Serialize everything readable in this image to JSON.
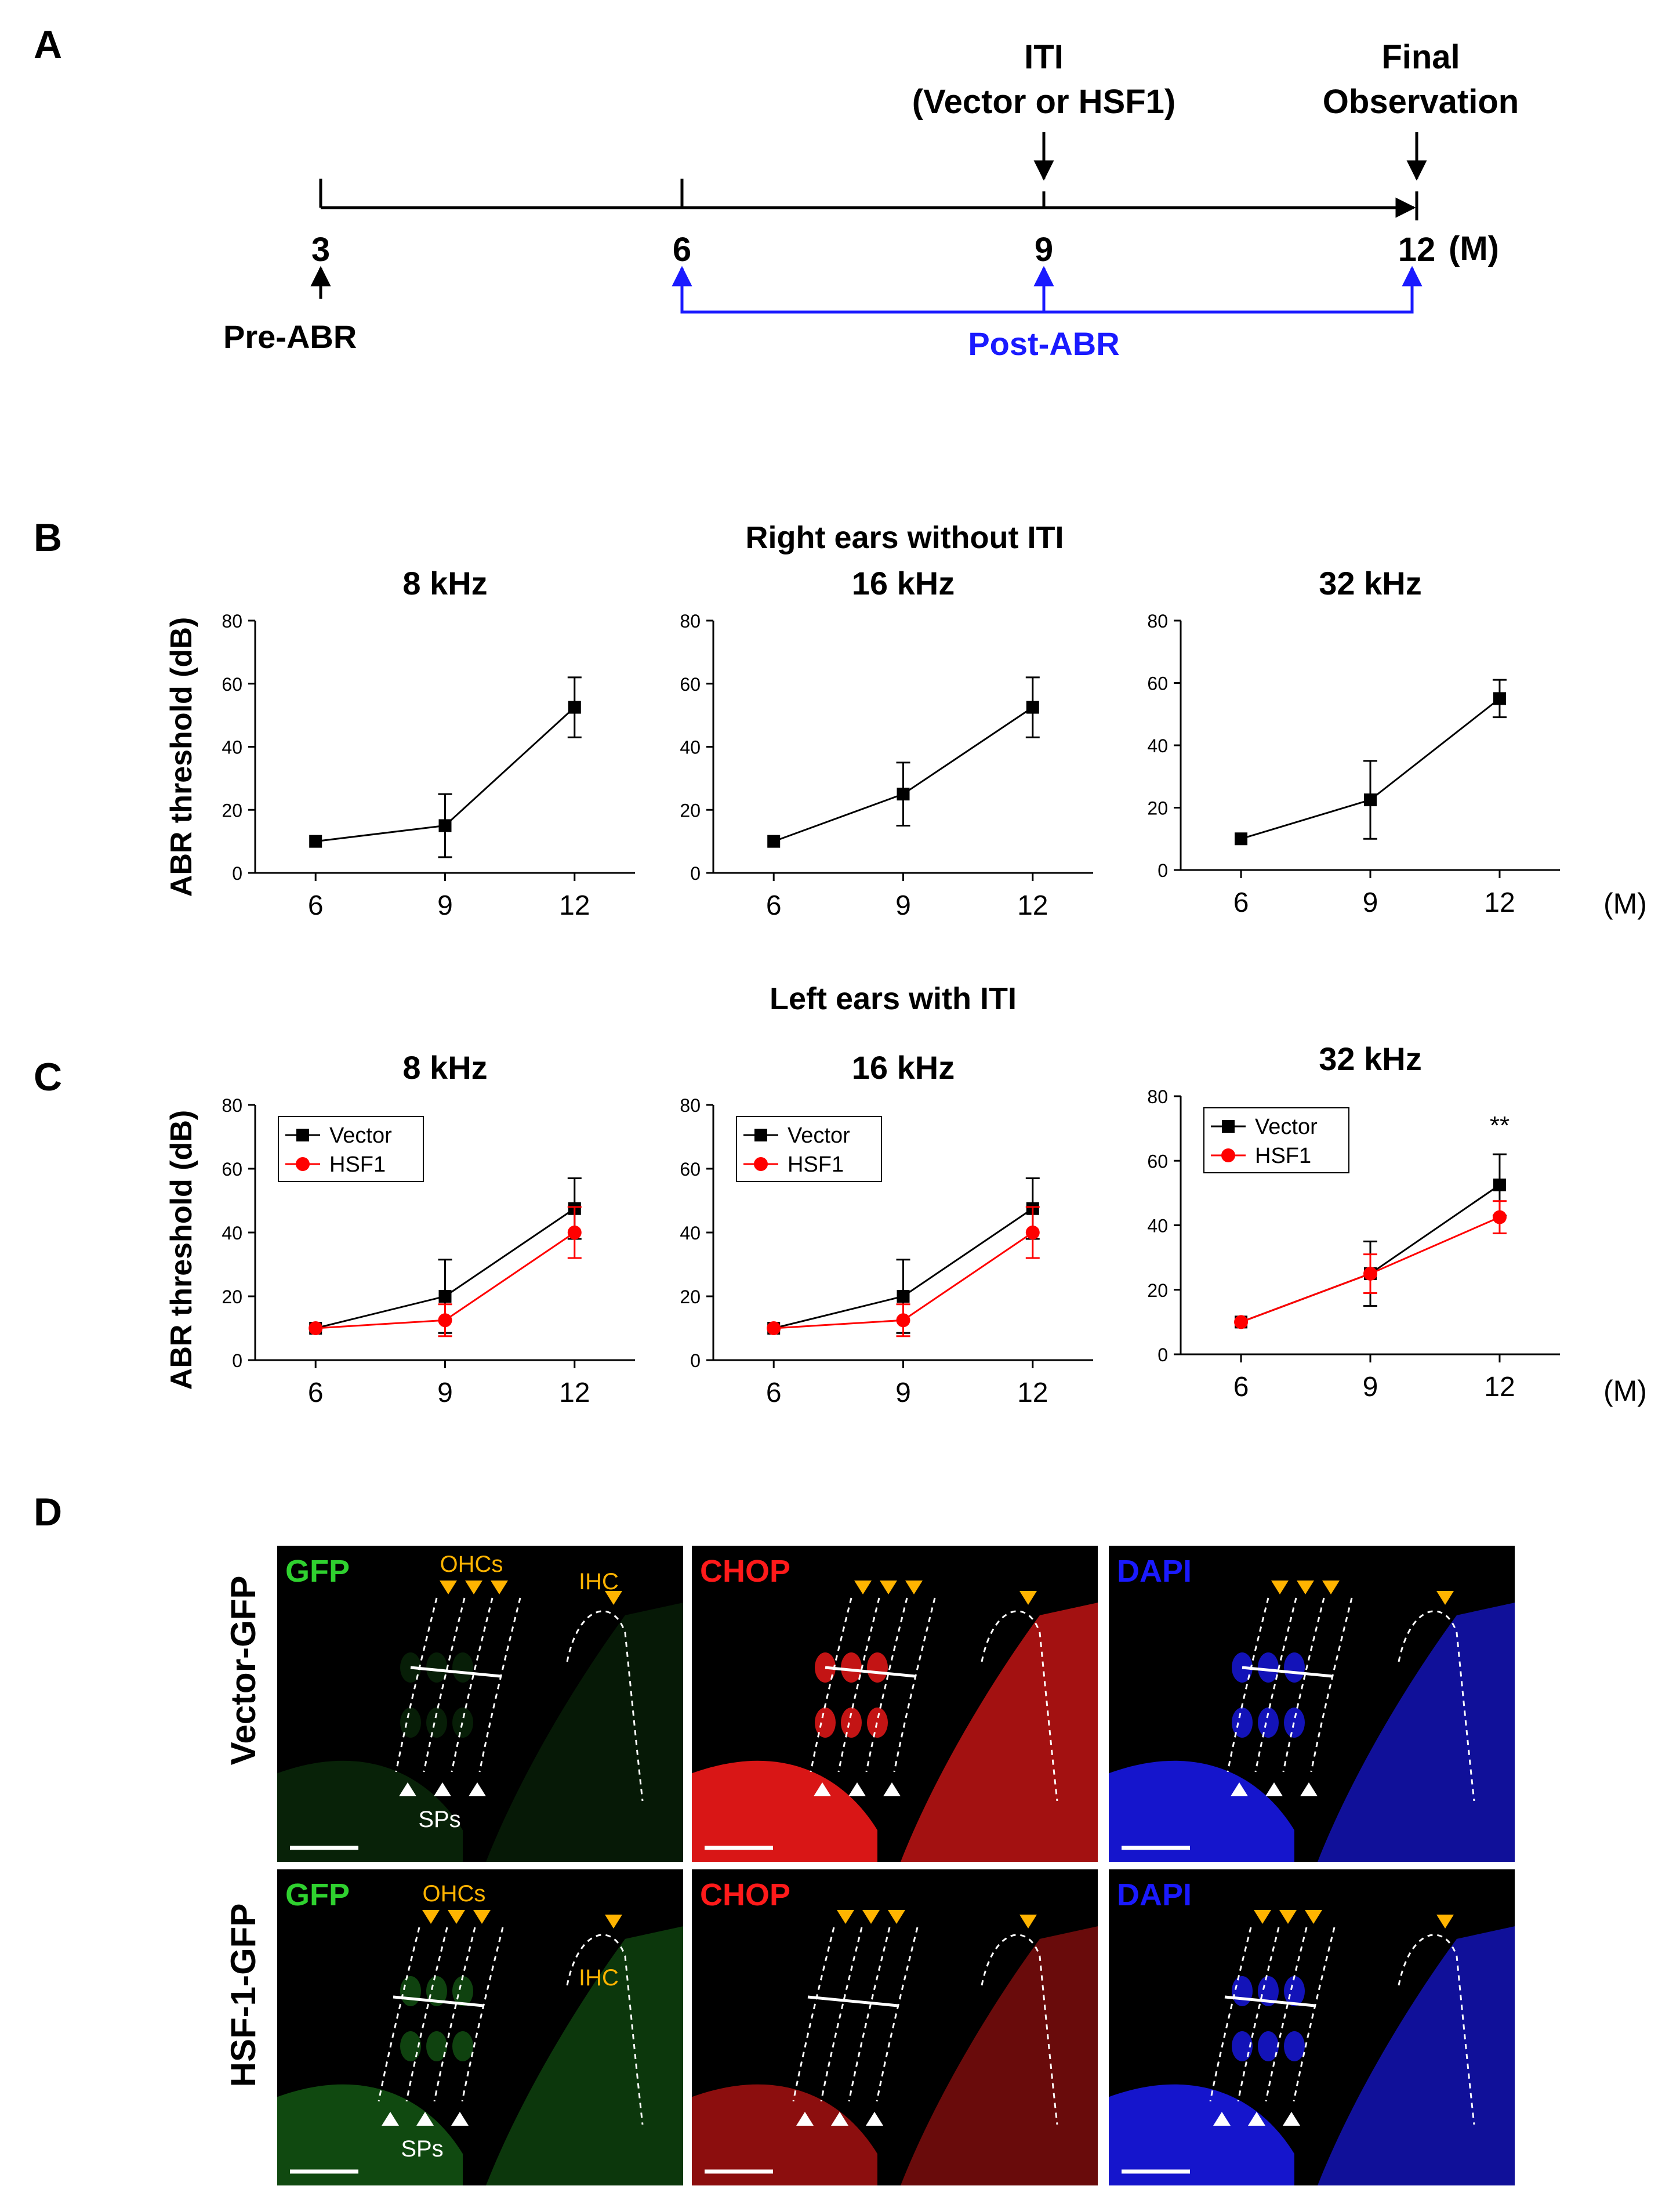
{
  "panel_letters": {
    "a": "A",
    "b": "B",
    "c": "C",
    "d": "D"
  },
  "timeline": {
    "ticks": [
      "3",
      "6",
      "9",
      "12"
    ],
    "unit": "(M)",
    "pre_abr": "Pre-ABR",
    "post_abr": "Post-ABR",
    "iti_line1": "ITI",
    "iti_line2": "(Vector or HSF1)",
    "final_line1": "Final",
    "final_line2": "Observation",
    "colors": {
      "black": "#000000",
      "post_abr": "#1a1aff"
    }
  },
  "row_b": {
    "title": "Right ears without ITI"
  },
  "row_c": {
    "title": "Left ears with ITI"
  },
  "y_axis_label": "ABR threshold (dB)",
  "x_unit": "(M)",
  "chart_data": [
    {
      "id": "b1",
      "type": "line",
      "title": "8 kHz",
      "x": [
        6,
        9,
        12
      ],
      "ylim": [
        0,
        80
      ],
      "yticks": [
        0,
        20,
        40,
        60,
        80
      ],
      "series": [
        {
          "name": "",
          "color": "#000000",
          "marker": "square",
          "values": [
            10,
            15,
            52.5
          ],
          "errors": [
            0,
            10,
            9.5
          ]
        }
      ]
    },
    {
      "id": "b2",
      "type": "line",
      "title": "16 kHz",
      "x": [
        6,
        9,
        12
      ],
      "ylim": [
        0,
        80
      ],
      "yticks": [
        0,
        20,
        40,
        60,
        80
      ],
      "series": [
        {
          "name": "",
          "color": "#000000",
          "marker": "square",
          "values": [
            10,
            25,
            52.5
          ],
          "errors": [
            0,
            10,
            9.5
          ]
        }
      ]
    },
    {
      "id": "b3",
      "type": "line",
      "title": "32 kHz",
      "x": [
        6,
        9,
        12
      ],
      "ylim": [
        0,
        80
      ],
      "yticks": [
        0,
        20,
        40,
        60,
        80
      ],
      "series": [
        {
          "name": "",
          "color": "#000000",
          "marker": "square",
          "values": [
            10,
            22.5,
            55
          ],
          "errors": [
            0,
            12.5,
            6
          ]
        }
      ]
    },
    {
      "id": "c1",
      "type": "line",
      "title": "8 kHz",
      "x": [
        6,
        9,
        12
      ],
      "ylim": [
        0,
        80
      ],
      "yticks": [
        0,
        20,
        40,
        60,
        80
      ],
      "legend": "top-left",
      "series": [
        {
          "name": "Vector",
          "color": "#000000",
          "marker": "square",
          "values": [
            10,
            20,
            47.5
          ],
          "errors": [
            0,
            11.5,
            9.5
          ]
        },
        {
          "name": "HSF1",
          "color": "#ff0000",
          "marker": "circle",
          "values": [
            10,
            12.5,
            40
          ],
          "errors": [
            0,
            5,
            8
          ]
        }
      ]
    },
    {
      "id": "c2",
      "type": "line",
      "title": "16 kHz",
      "x": [
        6,
        9,
        12
      ],
      "ylim": [
        0,
        80
      ],
      "yticks": [
        0,
        20,
        40,
        60,
        80
      ],
      "legend": "top-left",
      "series": [
        {
          "name": "Vector",
          "color": "#000000",
          "marker": "square",
          "values": [
            10,
            20,
            47.5
          ],
          "errors": [
            0,
            11.5,
            9.5
          ]
        },
        {
          "name": "HSF1",
          "color": "#ff0000",
          "marker": "circle",
          "values": [
            10,
            12.5,
            40
          ],
          "errors": [
            0,
            5,
            8
          ]
        }
      ]
    },
    {
      "id": "c3",
      "type": "line",
      "title": "32 kHz",
      "x": [
        6,
        9,
        12
      ],
      "ylim": [
        0,
        80
      ],
      "yticks": [
        0,
        20,
        40,
        60,
        80
      ],
      "legend": "top-left",
      "annotation": "**",
      "series": [
        {
          "name": "Vector",
          "color": "#000000",
          "marker": "square",
          "values": [
            10,
            25,
            52.5
          ],
          "errors": [
            0,
            10,
            9.5
          ]
        },
        {
          "name": "HSF1",
          "color": "#ff0000",
          "marker": "circle",
          "values": [
            10,
            25,
            42.5
          ],
          "errors": [
            0,
            6,
            5
          ]
        }
      ]
    }
  ],
  "micrographs": {
    "rows": [
      "Vector-GFP",
      "HSF-1-GFP"
    ],
    "channels": [
      {
        "label": "GFP",
        "color": "#2fd12f"
      },
      {
        "label": "CHOP",
        "color": "#ff1a1a"
      },
      {
        "label": "DAPI",
        "color": "#1a1aff"
      }
    ],
    "ohc_label": "OHCs",
    "ihc_label": "IHC",
    "sps_label": "SPs",
    "marker_color": "#ffb400"
  }
}
